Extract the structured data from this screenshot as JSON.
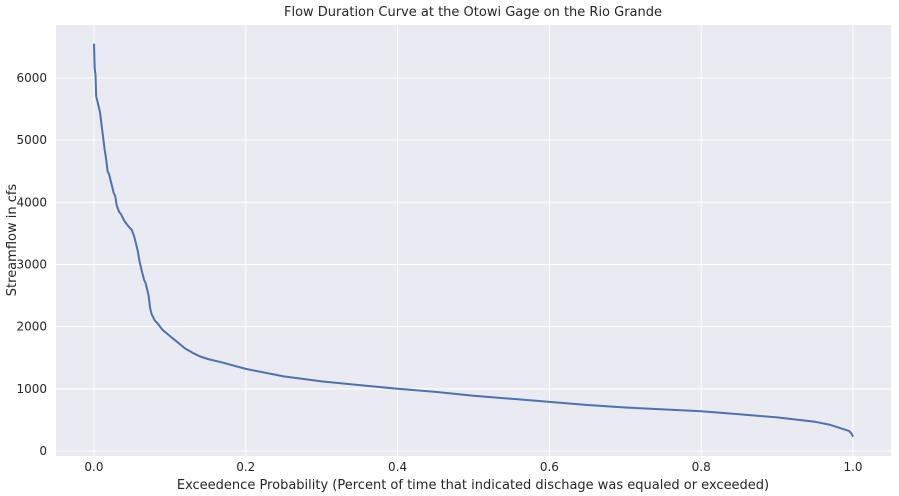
{
  "chart_data": {
    "type": "line",
    "title": "Flow Duration Curve at the Otowi Gage on the Rio Grande",
    "xlabel": "Exceedence Probability (Percent of time that indicated dischage was equaled or exceeded)",
    "ylabel": "Streamflow in cfs",
    "xlim": [
      -0.05,
      1.05
    ],
    "ylim": [
      -80,
      6850
    ],
    "xticks": [
      0.0,
      0.2,
      0.4,
      0.6,
      0.8,
      1.0
    ],
    "xtick_labels": [
      "0.0",
      "0.2",
      "0.4",
      "0.6",
      "0.8",
      "1.0"
    ],
    "yticks": [
      0,
      1000,
      2000,
      3000,
      4000,
      5000,
      6000
    ],
    "ytick_labels": [
      "0",
      "1000",
      "2000",
      "3000",
      "4000",
      "5000",
      "6000"
    ],
    "grid": true,
    "colors": {
      "line": "#4c72b0",
      "plot_background": "#eaeaf2",
      "grid": "#ffffff"
    },
    "series": [
      {
        "x": [
          0.0,
          0.001,
          0.002,
          0.003,
          0.004,
          0.006,
          0.008,
          0.01,
          0.012,
          0.014,
          0.016,
          0.018,
          0.02,
          0.023,
          0.026,
          0.028,
          0.03,
          0.033,
          0.036,
          0.04,
          0.045,
          0.05,
          0.053,
          0.056,
          0.058,
          0.06,
          0.062,
          0.064,
          0.066,
          0.068,
          0.07,
          0.072,
          0.074,
          0.076,
          0.078,
          0.08,
          0.084,
          0.09,
          0.1,
          0.11,
          0.12,
          0.13,
          0.14,
          0.15,
          0.17,
          0.2,
          0.25,
          0.3,
          0.35,
          0.4,
          0.45,
          0.5,
          0.55,
          0.6,
          0.65,
          0.7,
          0.75,
          0.8,
          0.85,
          0.9,
          0.95,
          0.97,
          0.985,
          0.995,
          0.998,
          1.0
        ],
        "values": [
          6550,
          6150,
          6050,
          5700,
          5650,
          5550,
          5450,
          5250,
          5050,
          4850,
          4700,
          4500,
          4450,
          4300,
          4150,
          4100,
          3950,
          3850,
          3800,
          3700,
          3620,
          3550,
          3450,
          3300,
          3200,
          3050,
          2950,
          2850,
          2750,
          2700,
          2600,
          2500,
          2300,
          2200,
          2150,
          2100,
          2050,
          1950,
          1850,
          1750,
          1650,
          1580,
          1520,
          1480,
          1420,
          1320,
          1200,
          1120,
          1060,
          1000,
          950,
          890,
          840,
          790,
          740,
          700,
          670,
          640,
          590,
          540,
          470,
          420,
          360,
          320,
          280,
          230
        ]
      }
    ]
  }
}
